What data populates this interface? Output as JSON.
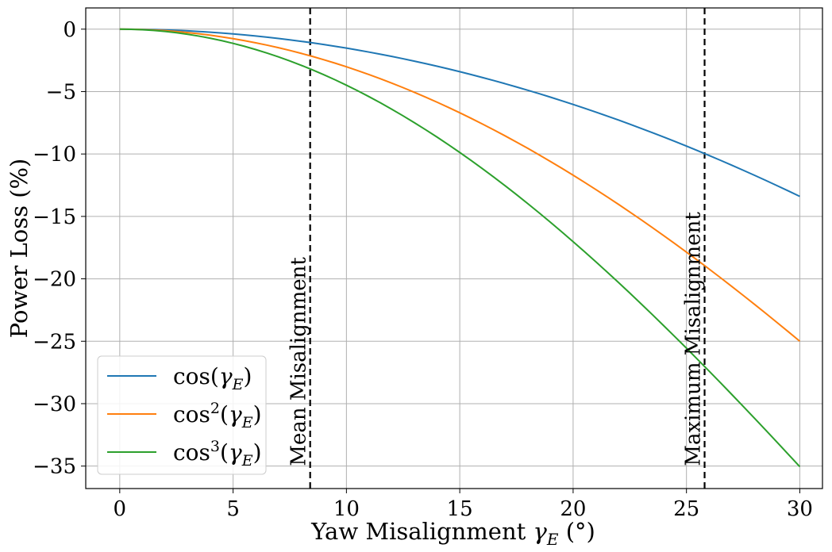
{
  "chart_data": {
    "type": "line",
    "title": "",
    "xlabel": "Yaw Misalignment γ_E (°)",
    "ylabel": "Power Loss (%)",
    "xlim": [
      -1.5,
      31.0
    ],
    "ylim": [
      -36.8,
      1.7
    ],
    "xticks": [
      0,
      5,
      10,
      15,
      20,
      25,
      30
    ],
    "xtick_labels": [
      "0",
      "5",
      "10",
      "15",
      "20",
      "25",
      "30"
    ],
    "yticks": [
      0,
      -5,
      -10,
      -15,
      -20,
      -25,
      -30,
      -35
    ],
    "ytick_labels": [
      "0",
      "−5",
      "−10",
      "−15",
      "−20",
      "−25",
      "−30",
      "−35"
    ],
    "grid": true,
    "legend_position": "lower-left",
    "x_start": 0,
    "x_end": 30,
    "x_step": 0.5,
    "series": [
      {
        "name": "cos(γ_E)",
        "base": "cos",
        "sup": "",
        "arg": "(γ_E)",
        "power": 1,
        "color": "#1f77b4"
      },
      {
        "name": "cos²(γ_E)",
        "base": "cos",
        "sup": "2",
        "arg": "(γ_E)",
        "power": 2,
        "color": "#ff7f0e"
      },
      {
        "name": "cos³(γ_E)",
        "base": "cos",
        "sup": "3",
        "arg": "(γ_E)",
        "power": 3,
        "color": "#2ca02c"
      }
    ],
    "vlines": [
      {
        "x": 8.4,
        "label": "Mean Misalignment",
        "color": "#000000",
        "style": "dashed"
      },
      {
        "x": 25.8,
        "label": "Maximum Misalignment",
        "color": "#000000",
        "style": "dashed"
      }
    ]
  }
}
